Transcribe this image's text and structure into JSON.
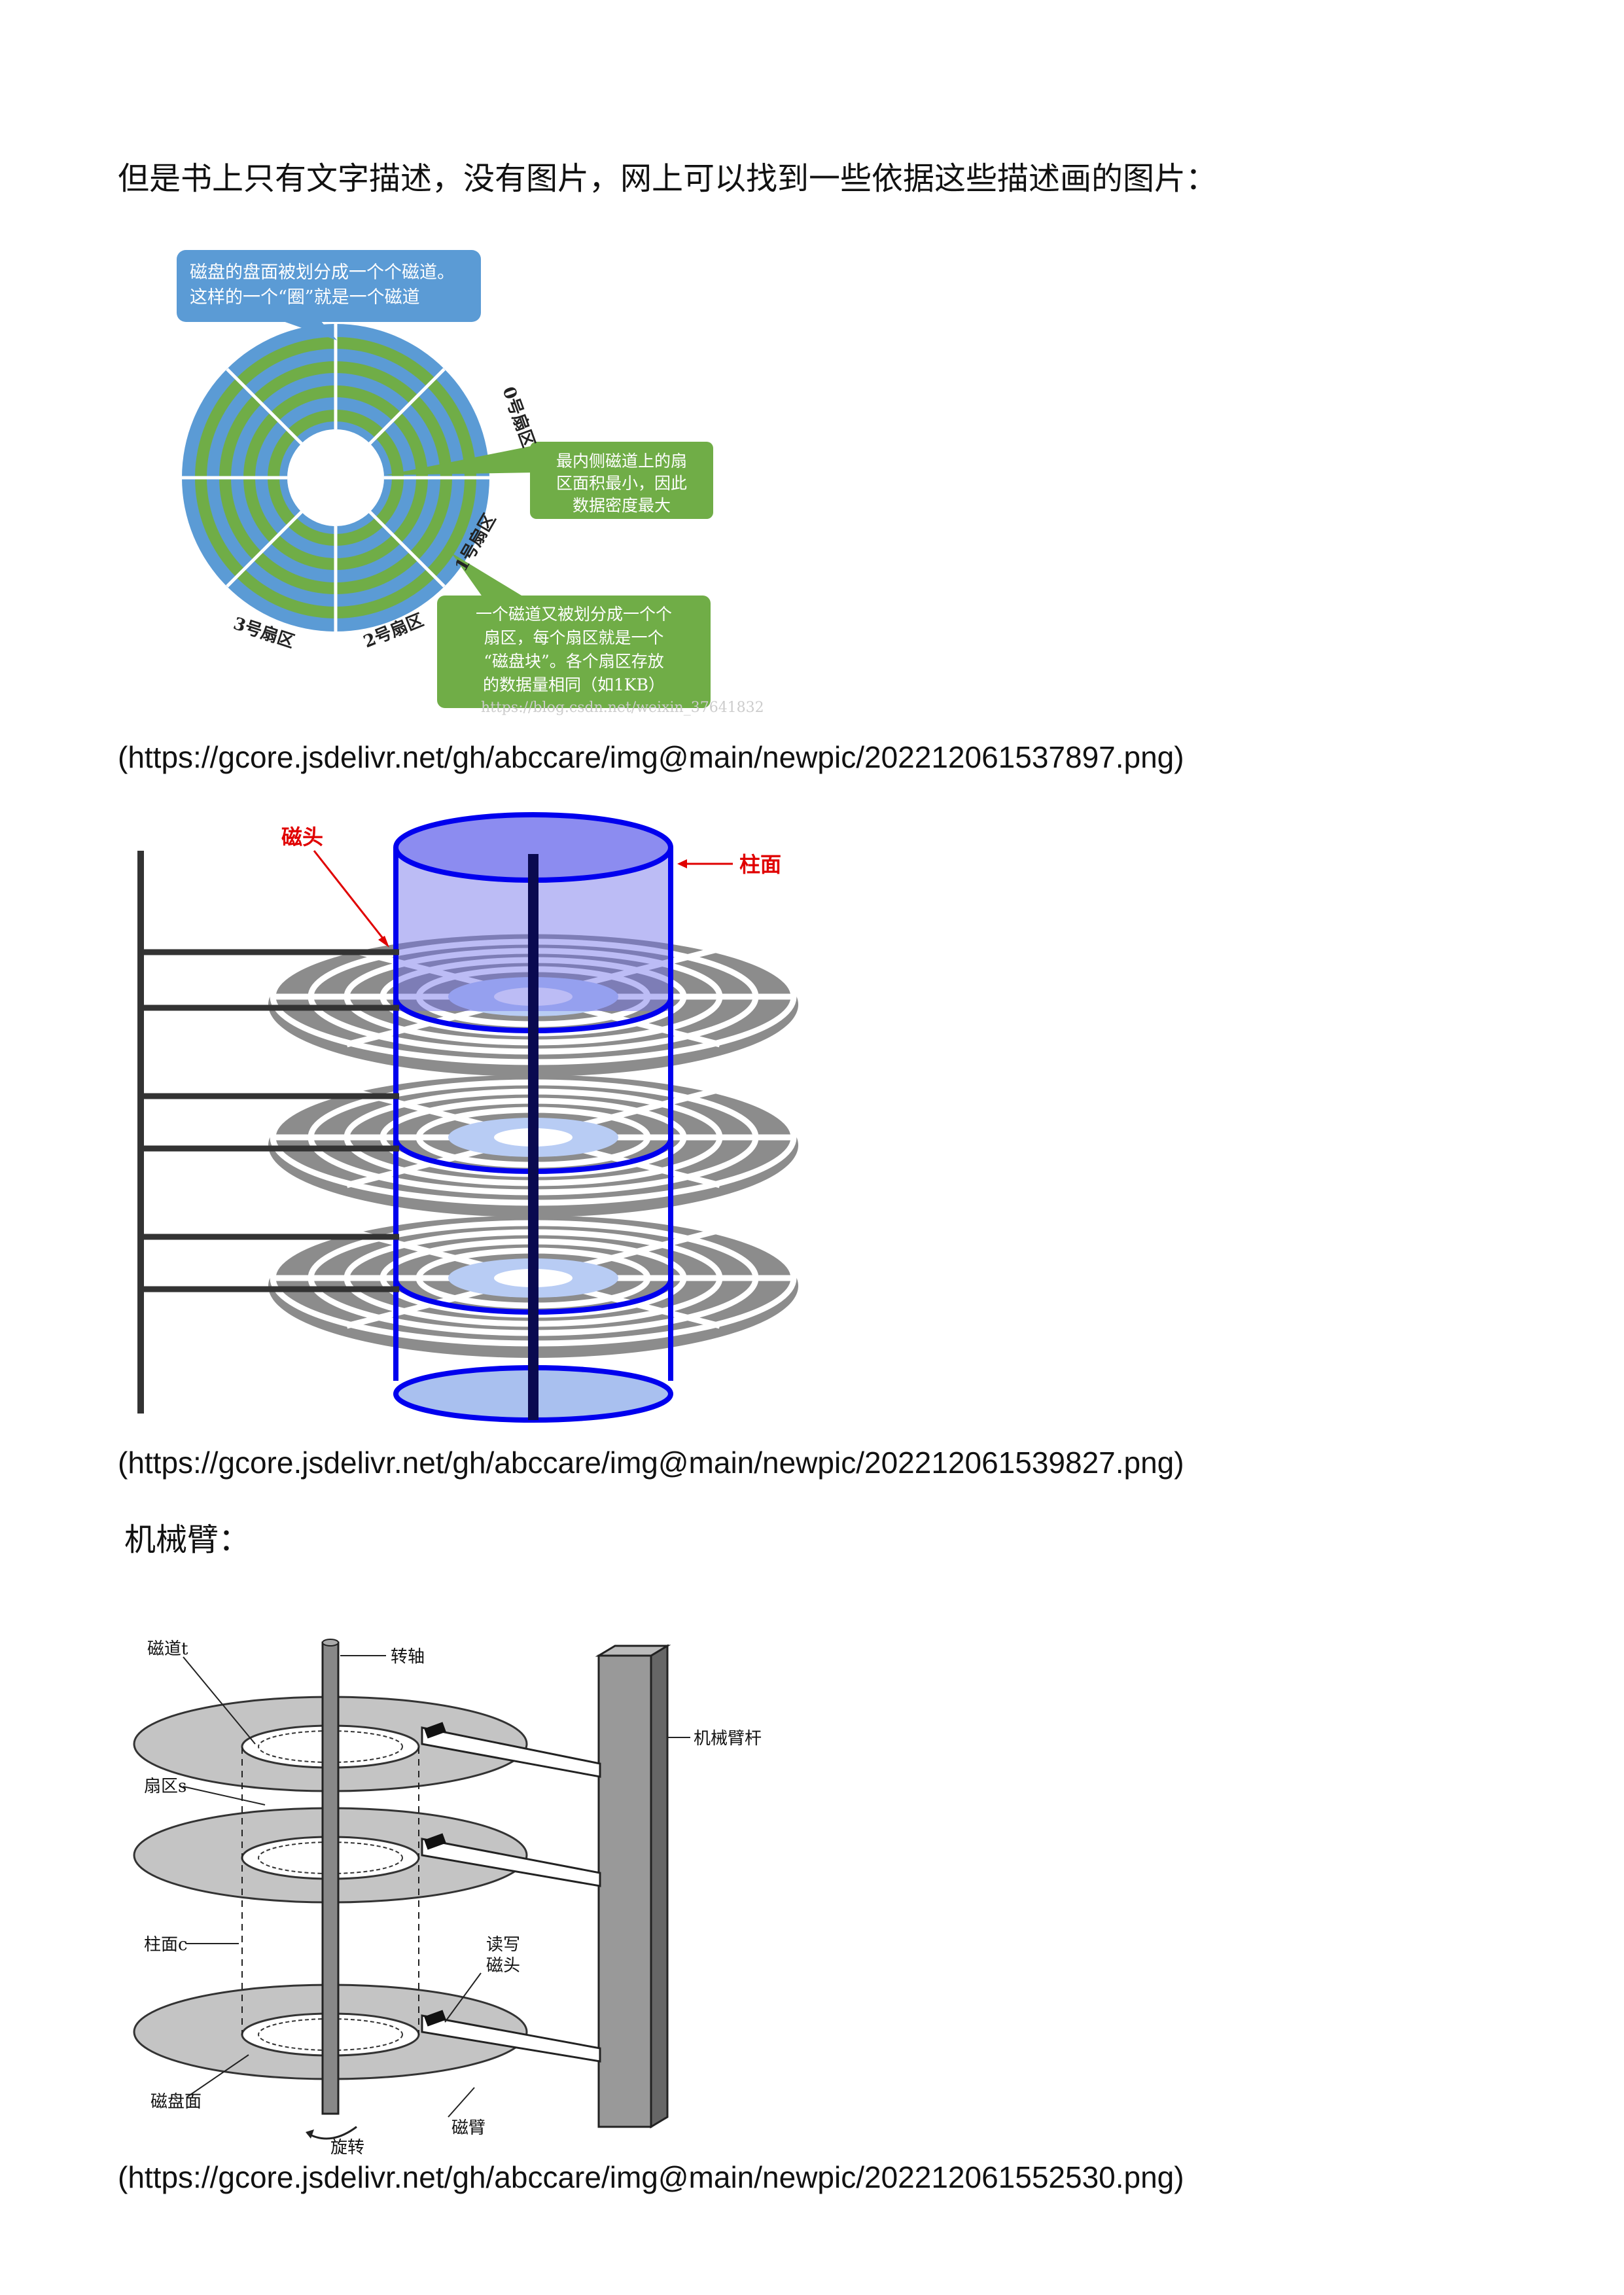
{
  "doc": {
    "intro": "但是书上只有文字描述，没有图片，网上可以找到一些依据这些描述画的图片：",
    "url1": "(https://gcore.jsdelivr.net/gh/abccare/img@main/newpic/202212061537897.png)",
    "url2": "(https://gcore.jsdelivr.net/gh/abccare/img@main/newpic/202212061539827.png)",
    "arm_heading": "机械臂：",
    "url3": "(https://gcore.jsdelivr.net/gh/abccare/img@main/newpic/202212061552530.png)"
  },
  "fig1": {
    "callout_top_line1": "磁盘的盘面被划分成一个个磁道。",
    "callout_top_line2": "这样的一个“圈”就是一个磁道",
    "callout_mid_line1": "最内侧磁道上的扇",
    "callout_mid_line2": "区面积最小，因此",
    "callout_mid_line3": "数据密度最大",
    "callout_bot_line1": "一个磁道又被划分成一个个",
    "callout_bot_line2": "扇区，每个扇区就是一个",
    "callout_bot_line3": "“磁盘块”。各个扇区存放",
    "callout_bot_line4": "的数据量相同（如1KB）",
    "sector0": "0号扇区",
    "sector1": "1号扇区",
    "sector2": "2号扇区",
    "sector3": "3号扇区",
    "watermark": "https://blog.csdn.net/weixin_37641832",
    "colors": {
      "track_green": "#70ad47",
      "track_blue": "#5b9bd5",
      "callout_blue": "#5b9bd5",
      "callout_green": "#70ad47"
    }
  },
  "fig2": {
    "head_label": "磁头",
    "cylinder_label": "柱面",
    "colors": {
      "label_red": "#e00000",
      "cylinder_blue": "#0000ee",
      "platter_gray": "#8c8c8c"
    }
  },
  "fig3": {
    "track_label": "磁道t",
    "spindle_label": "转轴",
    "arm_rod_label": "机械臂杆",
    "sector_label": "扇区s",
    "cylinder_label": "柱面c",
    "rw_head_line1": "读写",
    "rw_head_line2": "磁头",
    "surface_label": "磁盘面",
    "rotate_label": "旋转",
    "arm_label": "磁臂"
  }
}
